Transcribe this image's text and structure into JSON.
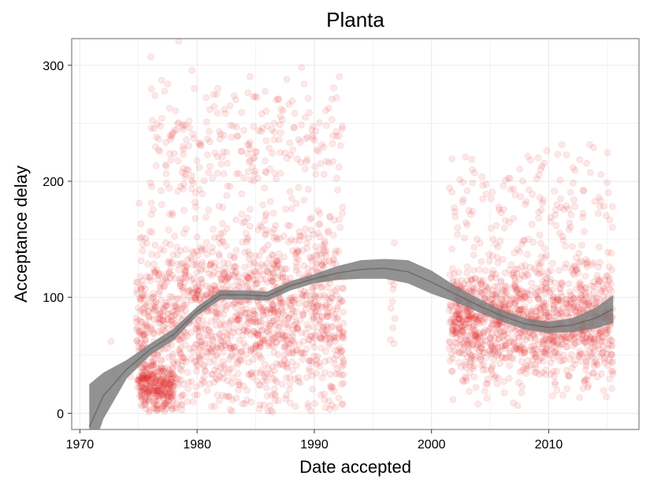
{
  "chart_data": {
    "type": "scatter",
    "title": "Planta",
    "xlabel": "Date accepted",
    "ylabel": "Acceptance delay",
    "xlim": [
      1969.3,
      2017.7
    ],
    "ylim": [
      -14,
      323
    ],
    "x_ticks": [
      1970,
      1980,
      1990,
      2000,
      2010
    ],
    "y_ticks": [
      0,
      100,
      200,
      300
    ],
    "grid": true,
    "legend": "none",
    "colors": {
      "points": "#e31a1c",
      "ribbon": "#7f7f7f",
      "line": "#555555",
      "grid": "#ebebeb",
      "border": "#7f7f7f"
    },
    "point_opacity": 0.1,
    "point_clusters": [
      {
        "x_range": [
          1974.8,
          1992.5
        ],
        "y_center": 85,
        "y_spread": 70,
        "count": 1500
      },
      {
        "x_range": [
          1975.0,
          1978.0
        ],
        "y_center": 25,
        "y_spread": 18,
        "count": 260
      },
      {
        "x_range": [
          1976.0,
          1992.5
        ],
        "y_center": 230,
        "y_spread": 55,
        "count": 260
      },
      {
        "x_range": [
          2001.5,
          2015.5
        ],
        "y_center": 80,
        "y_spread": 45,
        "count": 1300
      },
      {
        "x_range": [
          2001.5,
          2015.5
        ],
        "y_center": 180,
        "y_spread": 45,
        "count": 140
      },
      {
        "x_range": [
          1996.3,
          1996.9
        ],
        "y_center": 90,
        "y_spread": 45,
        "count": 10
      },
      {
        "x_range": [
          1970.5,
          1974.5
        ],
        "y_center": 35,
        "y_spread": 20,
        "count": 5
      }
    ],
    "smooth": {
      "x": [
        1970.8,
        1972,
        1974,
        1976,
        1978,
        1980,
        1982,
        1984,
        1986,
        1988,
        1990,
        1992,
        1994,
        1996,
        1998,
        2000,
        2002,
        2004,
        2006,
        2008,
        2010,
        2012,
        2014,
        2015.5
      ],
      "y": [
        -12,
        15,
        38,
        55,
        68,
        88,
        102,
        102,
        101,
        110,
        116,
        121,
        124,
        125,
        122,
        113,
        103,
        93,
        84,
        77,
        74,
        76,
        82,
        90
      ],
      "lower": [
        -40,
        -5,
        30,
        50,
        63,
        84,
        98,
        98,
        97,
        106,
        112,
        115,
        116,
        116,
        112,
        103,
        96,
        87,
        79,
        72,
        69,
        70,
        73,
        78
      ],
      "upper": [
        25,
        35,
        46,
        60,
        73,
        92,
        106,
        106,
        105,
        114,
        120,
        127,
        132,
        133,
        132,
        123,
        110,
        99,
        89,
        82,
        79,
        82,
        91,
        102
      ]
    }
  }
}
